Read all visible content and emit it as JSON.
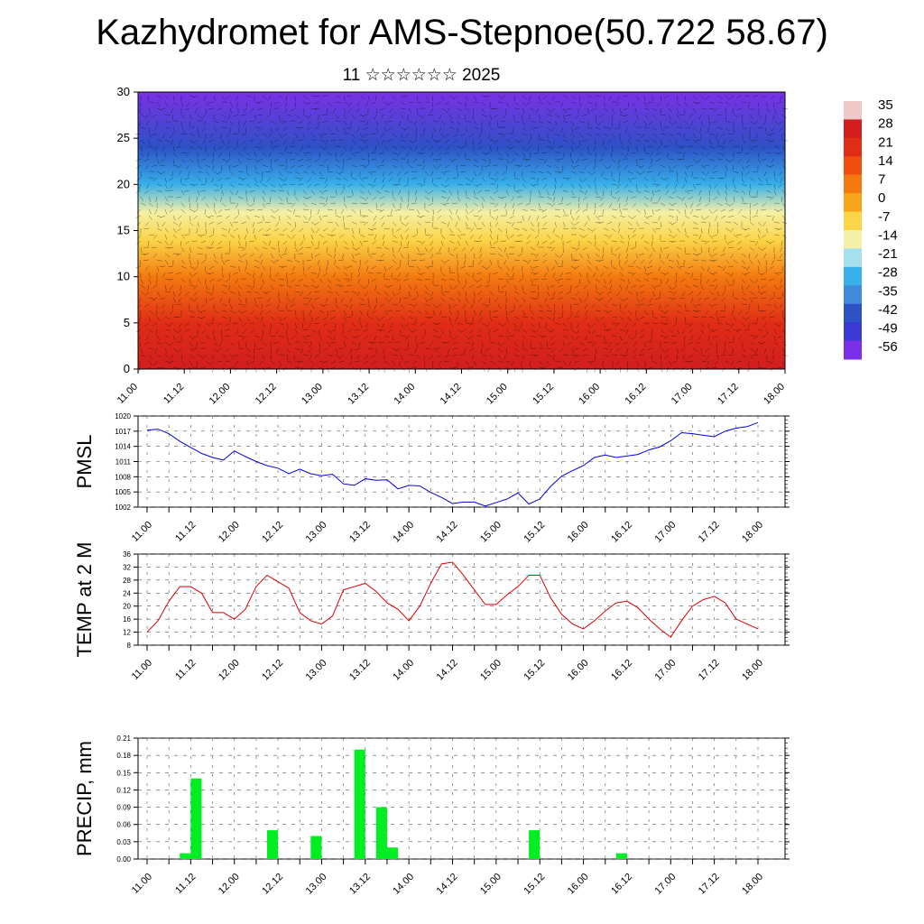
{
  "title": "Kazhydromet for AMS-Stepnoe(50.722 58.67)",
  "subtitle": "11 ☆☆☆☆☆☆ 2025",
  "x_tick_labels": [
    "11.00",
    "11.12",
    "12.00",
    "12.12",
    "13.00",
    "13.12",
    "14.00",
    "14.12",
    "15.00",
    "15.12",
    "16.00",
    "16.12",
    "17.00",
    "17.12",
    "18.00"
  ],
  "chart_data": [
    {
      "type": "heatmap",
      "xlim": [
        0,
        14
      ],
      "ylim": [
        0,
        30
      ],
      "y_ticks": [
        "0",
        "5",
        "10",
        "15",
        "20",
        "25",
        "30"
      ],
      "colorbar": {
        "labels": [
          "35",
          "28",
          "21",
          "14",
          "7",
          "0",
          "-7",
          "-14",
          "-21",
          "-28",
          "-35",
          "-42",
          "-49",
          "-56"
        ],
        "colors": [
          "#f0c8c8",
          "#d21e1e",
          "#e02d16",
          "#ef5010",
          "#f47a10",
          "#f7a51a",
          "#fbd548",
          "#f4f0a6",
          "#a6e0ee",
          "#38b0ea",
          "#3f8cdc",
          "#2d52c6",
          "#3a3ad2",
          "#7a30e6"
        ]
      },
      "profile_points": [
        {
          "height": 0,
          "value": 28
        },
        {
          "height": 5,
          "value": 24
        },
        {
          "height": 10,
          "value": 10
        },
        {
          "height": 14,
          "value": -5
        },
        {
          "height": 17,
          "value": -15
        },
        {
          "height": 20,
          "value": -28
        },
        {
          "height": 24,
          "value": -45
        },
        {
          "height": 30,
          "value": -56
        }
      ]
    },
    {
      "type": "line",
      "ylabel": "PMSL",
      "ylim": [
        1002,
        1020
      ],
      "y_ticks": [
        "1002",
        "1005",
        "1008",
        "1011",
        "1014",
        "1017",
        "1020"
      ],
      "color": "#0000dd",
      "values": [
        1017.2,
        1017.4,
        1016.5,
        1015.0,
        1013.8,
        1012.6,
        1011.8,
        1011.3,
        1013.1,
        1012.0,
        1011.0,
        1010.2,
        1009.7,
        1008.6,
        1009.5,
        1008.6,
        1008.2,
        1008.5,
        1006.6,
        1006.3,
        1007.6,
        1007.3,
        1007.4,
        1005.6,
        1006.3,
        1006.2,
        1004.9,
        1003.9,
        1002.7,
        1003.0,
        1003.0,
        1002.2,
        1002.9,
        1003.6,
        1004.8,
        1002.6,
        1003.6,
        1006.1,
        1008.1,
        1009.2,
        1010.2,
        1011.8,
        1012.3,
        1011.8,
        1012.1,
        1012.4,
        1013.3,
        1013.9,
        1015.1,
        1016.7,
        1016.5,
        1016.2,
        1015.9,
        1017.0,
        1017.6,
        1017.9,
        1018.7
      ]
    },
    {
      "type": "line",
      "ylabel": "TEMP at 2 M",
      "ylim": [
        8,
        36
      ],
      "y_ticks": [
        "8",
        "12",
        "16",
        "20",
        "24",
        "28",
        "32",
        "36"
      ],
      "color": "#dd0000",
      "values": [
        12,
        15.5,
        21.5,
        26,
        26,
        24,
        18,
        18,
        16,
        19,
        26,
        29.5,
        27.5,
        25.5,
        18,
        15.5,
        14.5,
        17,
        25,
        26,
        27,
        24.5,
        21,
        19,
        15.5,
        20,
        27,
        33,
        33.5,
        29.5,
        25,
        20.5,
        20.5,
        23.5,
        26,
        29.5,
        29.5,
        22.5,
        17.5,
        14.5,
        13,
        15.5,
        18.5,
        21,
        21.5,
        19.5,
        16,
        13,
        10.5,
        15.5,
        20,
        22,
        23,
        21,
        16,
        14.5,
        13
      ]
    },
    {
      "type": "bar",
      "ylabel": "PRECIP, mm",
      "ylim": [
        0,
        0.21
      ],
      "y_ticks": [
        "0.00",
        "0.03",
        "0.06",
        "0.09",
        "0.12",
        "0.15",
        "0.18",
        "0.21"
      ],
      "color": "#00ee22",
      "bars": [
        {
          "t": 1.0,
          "value": 0.01
        },
        {
          "t": 1.25,
          "value": 0.14
        },
        {
          "t": 3.0,
          "value": 0.05
        },
        {
          "t": 4.0,
          "value": 0.04
        },
        {
          "t": 5.0,
          "value": 0.19
        },
        {
          "t": 5.5,
          "value": 0.09
        },
        {
          "t": 5.75,
          "value": 0.02
        },
        {
          "t": 9.0,
          "value": 0.05
        },
        {
          "t": 11.0,
          "value": 0.01
        }
      ]
    }
  ]
}
